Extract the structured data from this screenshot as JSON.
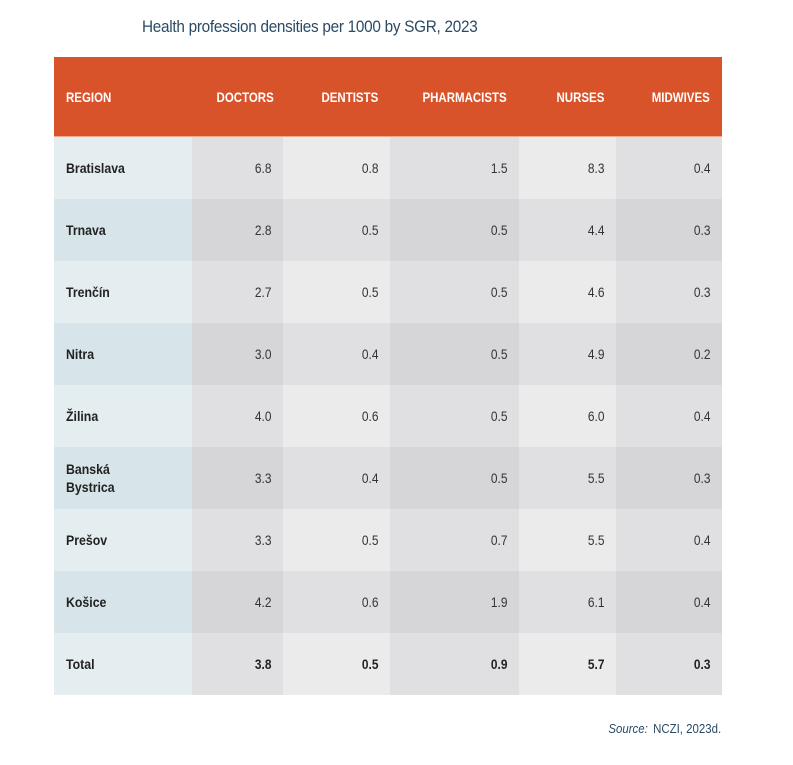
{
  "title": "Health profession densities per 1000 by SGR, 2023",
  "table": {
    "headers": [
      "REGION",
      "DOCTORS",
      "DENTISTS",
      "PHARMACISTS",
      "NURSES",
      "MIDWIVES"
    ],
    "rows": [
      {
        "region": "Bratislava",
        "values": [
          "6.8",
          "0.8",
          "1.5",
          "8.3",
          "0.4"
        ]
      },
      {
        "region": "Trnava",
        "values": [
          "2.8",
          "0.5",
          "0.5",
          "4.4",
          "0.3"
        ]
      },
      {
        "region": "Trenčín",
        "values": [
          "2.7",
          "0.5",
          "0.5",
          "4.6",
          "0.3"
        ]
      },
      {
        "region": "Nitra",
        "values": [
          "3.0",
          "0.4",
          "0.5",
          "4.9",
          "0.2"
        ]
      },
      {
        "region": "Žilina",
        "values": [
          "4.0",
          "0.6",
          "0.5",
          "6.0",
          "0.4"
        ]
      },
      {
        "region": "Banská Bystrica",
        "values": [
          "3.3",
          "0.4",
          "0.5",
          "5.5",
          "0.3"
        ]
      },
      {
        "region": "Prešov",
        "values": [
          "3.3",
          "0.5",
          "0.7",
          "5.5",
          "0.4"
        ]
      },
      {
        "region": "Košice",
        "values": [
          "4.2",
          "0.6",
          "1.9",
          "6.1",
          "0.4"
        ]
      }
    ],
    "total": {
      "region": "Total",
      "values": [
        "3.8",
        "0.5",
        "0.9",
        "5.7",
        "0.3"
      ]
    }
  },
  "source": {
    "label": "Source:",
    "text": "NCZI, 2023d."
  },
  "colors": {
    "header_bg": "#d9532a",
    "title_text": "#2b4a66"
  }
}
